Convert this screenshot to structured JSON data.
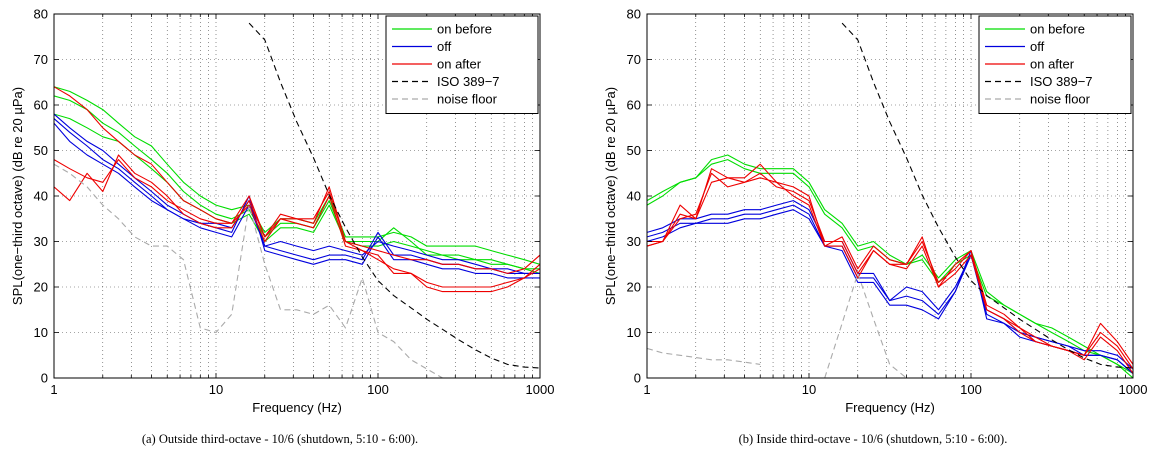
{
  "chart_data": [
    {
      "type": "line",
      "caption": "(a) Outside third-octave - 10/6 (shutdown, 5:10 - 6:00).",
      "xlabel": "Frequency (Hz)",
      "ylabel": "SPL(one−third octave) (dB re 20 µPa)",
      "xscale": "log",
      "xlim": [
        1,
        1000
      ],
      "ylim": [
        0,
        80
      ],
      "xticks": [
        "1",
        "10",
        "100",
        "1000"
      ],
      "yticks": [
        "0",
        "10",
        "20",
        "30",
        "40",
        "50",
        "60",
        "70",
        "80"
      ],
      "grid": true,
      "legend_position": "top-right",
      "x": [
        1,
        1.25,
        1.6,
        2,
        2.5,
        3.15,
        4,
        5,
        6.3,
        8,
        10,
        12.5,
        16,
        20,
        25,
        31.5,
        40,
        50,
        63,
        80,
        100,
        125,
        160,
        200,
        250,
        315,
        400,
        500,
        630,
        800,
        1000
      ],
      "series": [
        {
          "name": "on before",
          "color": "#00dd00",
          "dash": "solid",
          "values": [
            64,
            63,
            61,
            59,
            56,
            53,
            51,
            47,
            43,
            40,
            38,
            37,
            38,
            32,
            35,
            35,
            34,
            40,
            31,
            31,
            31,
            32,
            31,
            29,
            29,
            29,
            29,
            28,
            27,
            26,
            25
          ]
        },
        {
          "name": "",
          "color": "#00dd00",
          "dash": "solid",
          "values": [
            62,
            61,
            59,
            56,
            54,
            51,
            48,
            45,
            41,
            38,
            36,
            35,
            37,
            31,
            34,
            34,
            33,
            39,
            30,
            29,
            29,
            30,
            29,
            28,
            27,
            27,
            26,
            25,
            25,
            24,
            23
          ]
        },
        {
          "name": "",
          "color": "#00dd00",
          "dash": "solid",
          "values": [
            58,
            57,
            55,
            53,
            52,
            49,
            46,
            43,
            39,
            37,
            35,
            34,
            36,
            30,
            33,
            33,
            32,
            38,
            30,
            30,
            30,
            33,
            30,
            27,
            27,
            26,
            26,
            26,
            25,
            24,
            24
          ]
        },
        {
          "name": "off",
          "color": "#0000dd",
          "dash": "solid",
          "values": [
            58,
            55,
            52,
            50,
            47,
            44,
            41,
            38,
            36,
            34,
            33,
            32,
            40,
            28,
            27,
            26,
            25,
            26,
            26,
            25,
            31,
            26,
            26,
            25,
            24,
            24,
            23,
            23,
            22,
            22,
            22
          ]
        },
        {
          "name": "",
          "color": "#0000dd",
          "dash": "solid",
          "values": [
            57,
            54,
            51,
            48,
            46,
            43,
            40,
            37,
            35,
            33,
            32,
            31,
            38,
            29,
            28,
            27,
            26,
            27,
            27,
            26,
            32,
            27,
            27,
            26,
            25,
            25,
            24,
            24,
            23,
            23,
            23
          ]
        },
        {
          "name": "",
          "color": "#0000dd",
          "dash": "solid",
          "values": [
            56,
            52,
            49,
            47,
            45,
            42,
            39,
            37,
            35,
            34,
            34,
            33,
            39,
            29,
            30,
            29,
            28,
            29,
            28,
            27,
            30,
            29,
            28,
            27,
            26,
            26,
            25,
            24,
            24,
            23,
            23
          ]
        },
        {
          "name": "on after",
          "color": "#ee0000",
          "dash": "solid",
          "values": [
            64,
            62,
            59,
            55,
            52,
            49,
            47,
            43,
            39,
            37,
            35,
            34,
            40,
            31,
            36,
            35,
            34,
            42,
            30,
            29,
            28,
            27,
            26,
            26,
            25,
            25,
            24,
            24,
            23,
            24,
            27
          ]
        },
        {
          "name": "",
          "color": "#ee0000",
          "dash": "solid",
          "values": [
            48,
            46,
            44,
            43,
            48,
            44,
            42,
            39,
            37,
            35,
            34,
            34,
            38,
            30,
            35,
            34,
            33,
            40,
            29,
            28,
            26,
            24,
            23,
            21,
            20,
            20,
            20,
            20,
            21,
            22,
            24
          ]
        },
        {
          "name": "",
          "color": "#ee0000",
          "dash": "solid",
          "values": [
            42,
            39,
            45,
            41,
            49,
            45,
            43,
            40,
            36,
            34,
            33,
            33,
            39,
            31,
            35,
            35,
            35,
            41,
            30,
            28,
            27,
            23,
            23,
            20,
            19,
            19,
            19,
            19,
            20,
            22,
            25
          ]
        },
        {
          "name": "ISO 389−7",
          "color": "#000000",
          "dash": "dashed",
          "values": [
            null,
            null,
            null,
            null,
            null,
            null,
            null,
            null,
            null,
            null,
            null,
            null,
            78,
            74.3,
            65,
            56.3,
            48.4,
            40.2,
            33.1,
            26.6,
            21.4,
            18.1,
            15.4,
            12.9,
            10.7,
            8.4,
            6.2,
            4.4,
            3,
            2.4,
            2.2
          ]
        },
        {
          "name": "noise floor",
          "color": "#aaaaaa",
          "dash": "dashed",
          "values": [
            47,
            45,
            42,
            38,
            35,
            31,
            29,
            29,
            26,
            11,
            10,
            14,
            38,
            25,
            15,
            15,
            14,
            16,
            11,
            22,
            10,
            8,
            4,
            2,
            0,
            null,
            null,
            null,
            null,
            null,
            null
          ]
        }
      ]
    },
    {
      "type": "line",
      "caption": "(b) Inside third-octave - 10/6 (shutdown, 5:10 - 6:00).",
      "xlabel": "Frequency (Hz)",
      "ylabel": "SPL(one−third octave) (dB re 20 µPa)",
      "xscale": "log",
      "xlim": [
        1,
        1000
      ],
      "ylim": [
        0,
        80
      ],
      "xticks": [
        "1",
        "10",
        "100",
        "1000"
      ],
      "yticks": [
        "0",
        "10",
        "20",
        "30",
        "40",
        "50",
        "60",
        "70",
        "80"
      ],
      "grid": true,
      "legend_position": "top-right",
      "x": [
        1,
        1.25,
        1.6,
        2,
        2.5,
        3.15,
        4,
        5,
        6.3,
        8,
        10,
        12.5,
        16,
        20,
        25,
        31.5,
        40,
        50,
        63,
        80,
        100,
        125,
        160,
        200,
        250,
        315,
        400,
        500,
        630,
        800,
        1000
      ],
      "series": [
        {
          "name": "on before",
          "color": "#00dd00",
          "dash": "solid",
          "values": [
            39,
            41,
            43,
            44,
            48,
            49,
            47,
            46,
            46,
            46,
            43,
            37,
            34,
            29,
            30,
            27,
            25,
            27,
            22,
            26,
            28,
            19,
            16,
            14,
            12,
            11,
            9,
            7,
            5,
            3,
            1
          ]
        },
        {
          "name": "",
          "color": "#00dd00",
          "dash": "solid",
          "values": [
            38,
            40,
            43,
            44,
            47,
            48,
            46,
            45,
            45,
            45,
            42,
            36,
            33,
            28,
            29,
            26,
            25,
            26,
            21,
            25,
            27,
            18,
            16,
            14,
            12,
            10,
            8,
            6,
            5,
            3,
            0
          ]
        },
        {
          "name": "off",
          "color": "#0000dd",
          "dash": "solid",
          "values": [
            32,
            33,
            35,
            35,
            36,
            36,
            37,
            37,
            38,
            39,
            37,
            30,
            30,
            23,
            23,
            17,
            20,
            19,
            15,
            20,
            27,
            15,
            13,
            10,
            9,
            8,
            7,
            6,
            6,
            5,
            2
          ]
        },
        {
          "name": "",
          "color": "#0000dd",
          "dash": "solid",
          "values": [
            31,
            32,
            34,
            34,
            35,
            35,
            36,
            36,
            37,
            38,
            36,
            29,
            29,
            22,
            22,
            17,
            18,
            17,
            14,
            19,
            27,
            14,
            12,
            10,
            9,
            8,
            7,
            5,
            5,
            4,
            1
          ]
        },
        {
          "name": "",
          "color": "#0000dd",
          "dash": "solid",
          "values": [
            30,
            31,
            33,
            34,
            34,
            34,
            35,
            35,
            36,
            37,
            35,
            29,
            28,
            21,
            21,
            16,
            16,
            15,
            13,
            19,
            28,
            13,
            12,
            9,
            8,
            7,
            6,
            5,
            5,
            4,
            1
          ]
        },
        {
          "name": "on after",
          "color": "#ee0000",
          "dash": "solid",
          "values": [
            29,
            30,
            38,
            35,
            46,
            44,
            44,
            47,
            43,
            42,
            40,
            29,
            31,
            24,
            29,
            26,
            25,
            31,
            20,
            25,
            28,
            16,
            14,
            11,
            9,
            7,
            6,
            5,
            12,
            8,
            3
          ]
        },
        {
          "name": "",
          "color": "#ee0000",
          "dash": "solid",
          "values": [
            30,
            30,
            36,
            35,
            43,
            44,
            43,
            45,
            42,
            41,
            39,
            30,
            30,
            23,
            28,
            25,
            25,
            30,
            21,
            24,
            28,
            15,
            13,
            11,
            8,
            7,
            6,
            5,
            10,
            7,
            2
          ]
        },
        {
          "name": "",
          "color": "#ee0000",
          "dash": "solid",
          "values": [
            29,
            30,
            35,
            36,
            45,
            42,
            43,
            44,
            43,
            40,
            38,
            29,
            29,
            22,
            28,
            25,
            24,
            29,
            20,
            23,
            27,
            15,
            13,
            10,
            8,
            7,
            6,
            4,
            9,
            6,
            1
          ]
        },
        {
          "name": "ISO 389−7",
          "color": "#000000",
          "dash": "dashed",
          "values": [
            null,
            null,
            null,
            null,
            null,
            null,
            null,
            null,
            null,
            null,
            null,
            null,
            78,
            74.3,
            65,
            56.3,
            48.4,
            40.2,
            33.1,
            26.6,
            21.4,
            18.1,
            15.4,
            12.9,
            10.7,
            8.4,
            6.2,
            4.4,
            3,
            2.4,
            2.2
          ]
        },
        {
          "name": "noise floor",
          "color": "#aaaaaa",
          "dash": "dashed",
          "values": [
            6.5,
            5.5,
            5,
            4.5,
            4,
            4,
            3.5,
            3,
            null,
            null,
            null,
            0,
            12,
            23,
            13,
            3,
            0,
            null,
            null,
            null,
            null,
            null,
            null,
            null,
            null,
            null,
            null,
            null,
            null,
            null,
            null
          ]
        }
      ]
    }
  ]
}
